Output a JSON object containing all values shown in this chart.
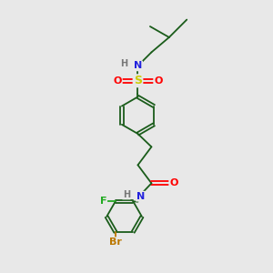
{
  "bg_color": "#e8e8e8",
  "bond_color": "#1a5c1a",
  "atom_colors": {
    "N": "#2222dd",
    "H": "#777777",
    "O": "#ff0000",
    "S": "#cccc00",
    "F": "#22aa22",
    "Br": "#bb7700",
    "C": "#1a5c1a"
  },
  "fig_width": 3.0,
  "fig_height": 3.0,
  "dpi": 100
}
